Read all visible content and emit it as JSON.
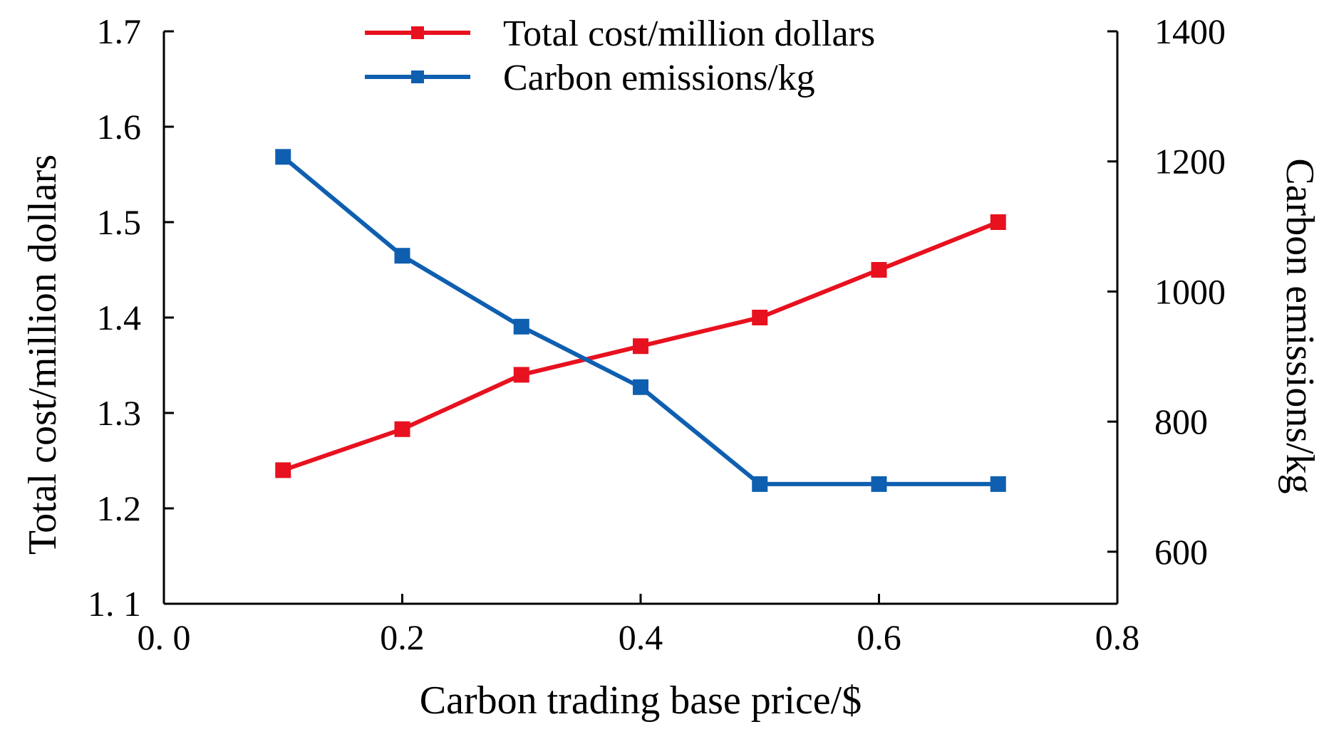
{
  "chart_data": {
    "type": "line",
    "xlabel": "Carbon trading base price/$",
    "ylabel_left": "Total cost/million dollars",
    "ylabel_right": "Carbon emissions/kg",
    "xlim": [
      0.0,
      0.8
    ],
    "ylim_left": [
      1.1,
      1.7
    ],
    "ylim_right": [
      520,
      1400
    ],
    "x_ticks": [
      "0. 0",
      "0.2",
      "0.4",
      "0.6",
      "0.8"
    ],
    "x_tick_values": [
      0.0,
      0.2,
      0.4,
      0.6,
      0.8
    ],
    "y_left_ticks": [
      "1. 1",
      "1.2",
      "1.3",
      "1.4",
      "1.5",
      "1.6",
      "1.7"
    ],
    "y_left_tick_values": [
      1.1,
      1.2,
      1.3,
      1.4,
      1.5,
      1.6,
      1.7
    ],
    "y_right_ticks": [
      "600",
      "800",
      "1000",
      "1200",
      "1400"
    ],
    "y_right_tick_values": [
      600,
      800,
      1000,
      1200,
      1400
    ],
    "x": [
      0.1,
      0.2,
      0.3,
      0.4,
      0.5,
      0.6,
      0.7
    ],
    "grid": false,
    "legend_position": "top-center",
    "series": [
      {
        "name": "Total cost/million dollars",
        "axis": "left",
        "color": "#e8111f",
        "marker": "square",
        "values": [
          1.24,
          1.283,
          1.34,
          1.37,
          1.4,
          1.45,
          1.5
        ]
      },
      {
        "name": "Carbon emissions/kg",
        "axis": "right",
        "color": "#0f5fb0",
        "marker": "square",
        "values": [
          1207,
          1055,
          946,
          853,
          704,
          704,
          704
        ]
      }
    ]
  }
}
